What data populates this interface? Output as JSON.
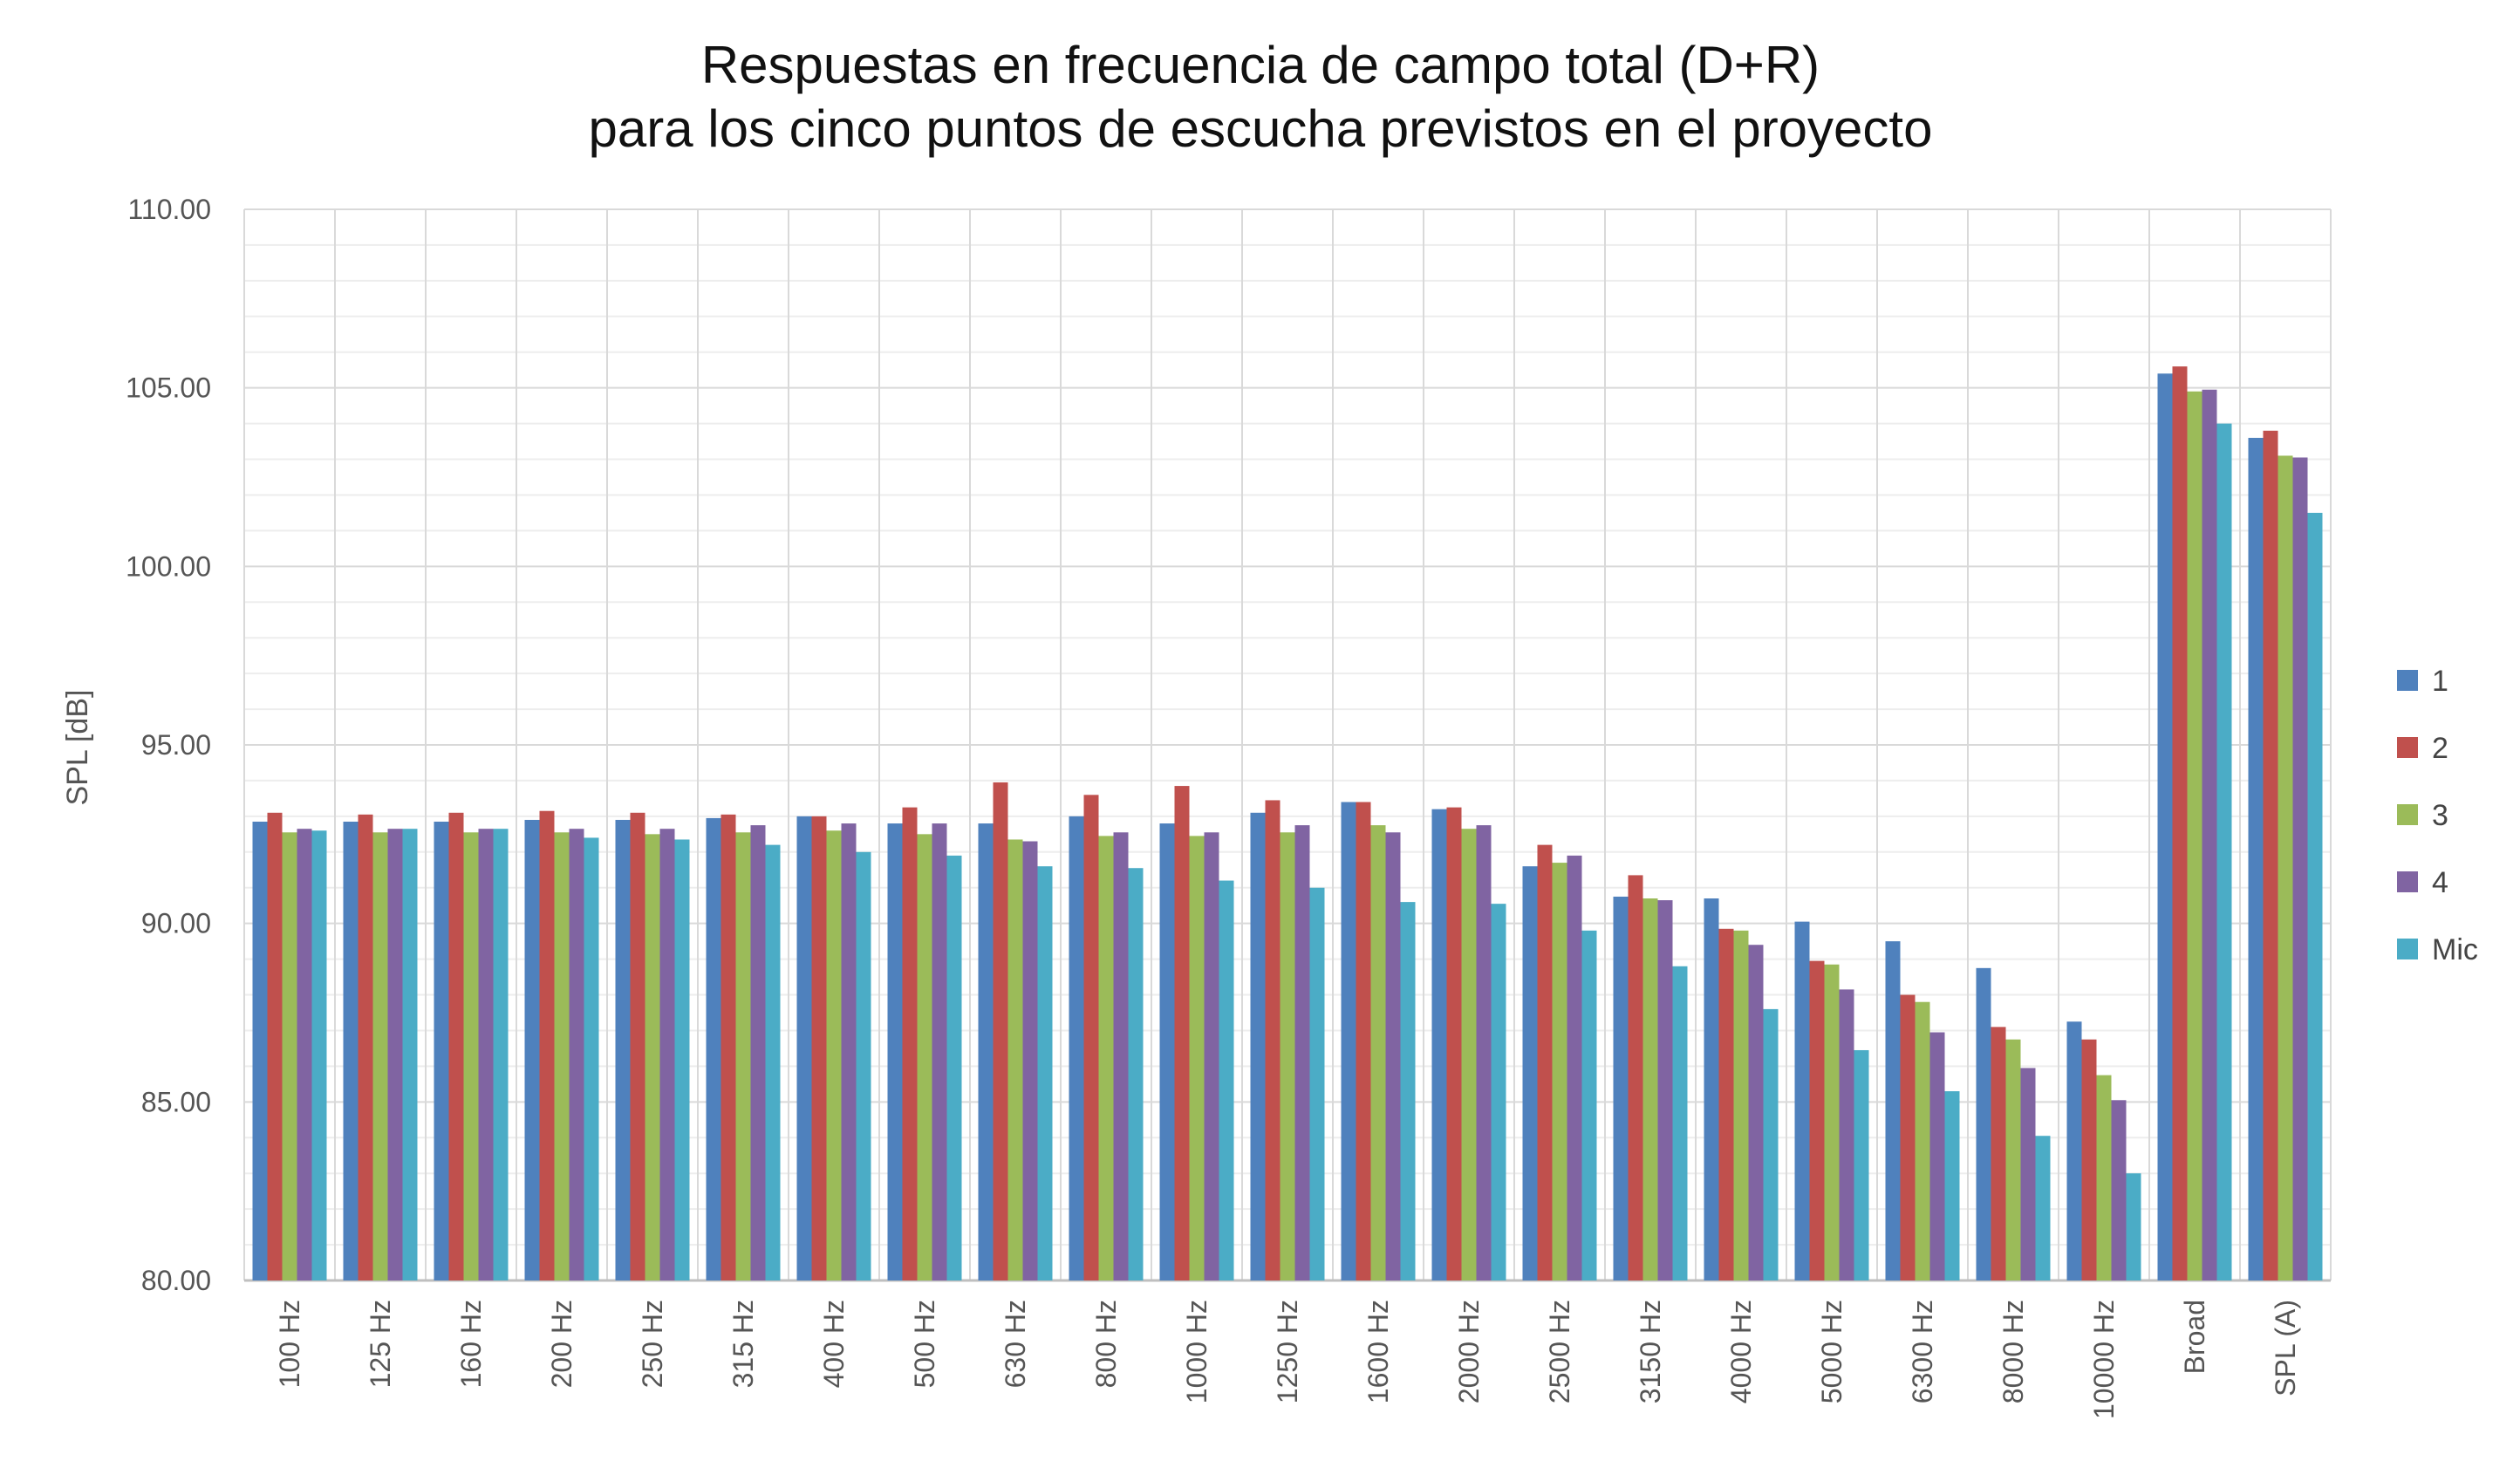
{
  "chart_data": {
    "type": "bar",
    "title": "Respuestas en frecuencia de campo total (D+R)",
    "subtitle": "para los cinco puntos de escucha previstos en el proyecto",
    "xlabel": "",
    "ylabel": "SPL [dB]",
    "ylim": [
      80,
      110
    ],
    "y_ticks": [
      "80.00",
      "85.00",
      "90.00",
      "95.00",
      "100.00",
      "105.00",
      "110.00"
    ],
    "grid": true,
    "legend_position": "right",
    "categories": [
      "100 Hz",
      "125 Hz",
      "160 Hz",
      "200 Hz",
      "250 Hz",
      "315 Hz",
      "400 Hz",
      "500 Hz",
      "630 Hz",
      "800 Hz",
      "1000 Hz",
      "1250 Hz",
      "1600 Hz",
      "2000 Hz",
      "2500 Hz",
      "3150 Hz",
      "4000 Hz",
      "5000 Hz",
      "6300 Hz",
      "8000 Hz",
      "10000 Hz",
      "Broad",
      "SPL (A)"
    ],
    "series": [
      {
        "name": "1",
        "color": "#4f81bd",
        "values": [
          92.85,
          92.85,
          92.85,
          92.9,
          92.9,
          92.95,
          93.0,
          92.8,
          92.8,
          93.0,
          92.8,
          93.1,
          93.4,
          93.2,
          91.6,
          90.75,
          90.7,
          90.05,
          89.5,
          88.75,
          87.25,
          105.4,
          103.6
        ]
      },
      {
        "name": "2",
        "color": "#c0504d",
        "values": [
          93.1,
          93.05,
          93.1,
          93.15,
          93.1,
          93.05,
          93.0,
          93.25,
          93.95,
          93.6,
          93.85,
          93.45,
          93.4,
          93.25,
          92.2,
          91.35,
          89.85,
          88.95,
          88.0,
          87.1,
          86.75,
          105.6,
          103.8
        ]
      },
      {
        "name": "3",
        "color": "#9bbb59",
        "values": [
          92.55,
          92.55,
          92.55,
          92.55,
          92.5,
          92.55,
          92.6,
          92.5,
          92.35,
          92.45,
          92.45,
          92.55,
          92.75,
          92.65,
          91.7,
          90.7,
          89.8,
          88.85,
          87.8,
          86.75,
          85.75,
          104.9,
          103.1
        ]
      },
      {
        "name": "4",
        "color": "#8064a2",
        "values": [
          92.65,
          92.65,
          92.65,
          92.65,
          92.65,
          92.75,
          92.8,
          92.8,
          92.3,
          92.55,
          92.55,
          92.75,
          92.55,
          92.75,
          91.9,
          90.65,
          89.4,
          88.15,
          86.95,
          85.95,
          85.05,
          104.95,
          103.05
        ]
      },
      {
        "name": "Mic",
        "color": "#4bacc6",
        "values": [
          92.6,
          92.65,
          92.65,
          92.4,
          92.35,
          92.2,
          92.0,
          91.9,
          91.6,
          91.55,
          91.2,
          91.0,
          90.6,
          90.55,
          89.8,
          88.8,
          87.6,
          86.45,
          85.3,
          84.05,
          83.0,
          104.0,
          101.5
        ]
      }
    ]
  }
}
